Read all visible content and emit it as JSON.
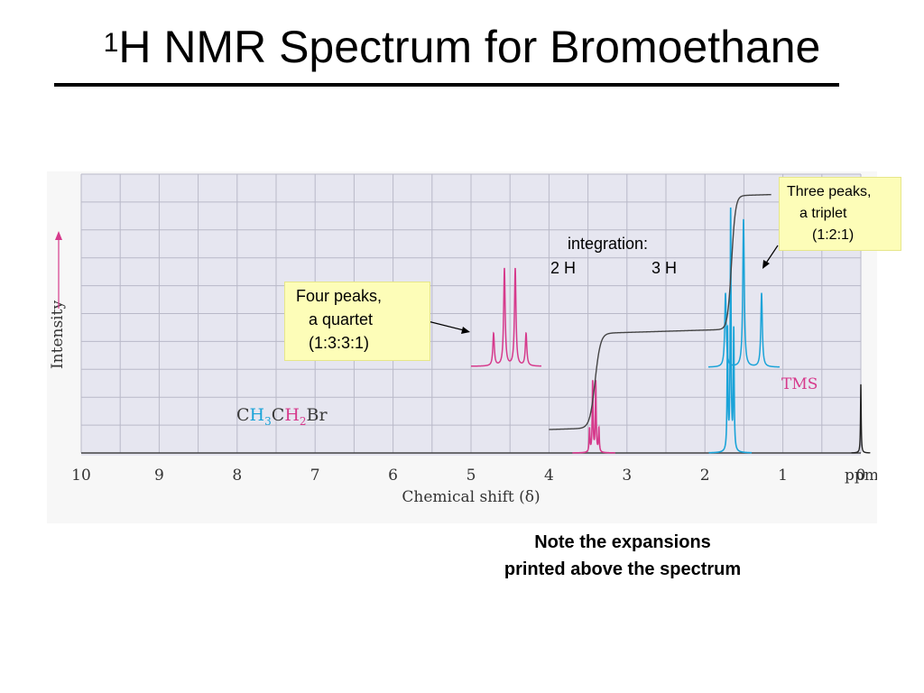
{
  "title": {
    "superscript": "1",
    "text": "H NMR Spectrum for Bromoethane"
  },
  "integration": {
    "label": "integration:",
    "left": "2 H",
    "right": "3 H"
  },
  "notes": {
    "quartet": [
      "Four peaks,",
      "a quartet",
      "(1:3:3:1)"
    ],
    "triplet": [
      "Three peaks,",
      "a triplet",
      "(1:2:1)"
    ]
  },
  "footnote": [
    "Note the expansions",
    "printed above the spectrum"
  ],
  "formula": {
    "parts": [
      {
        "text": "C",
        "color": "#3a3a3a",
        "sub": ""
      },
      {
        "text": "H",
        "color": "#1aa3d8",
        "sub": "3"
      },
      {
        "text": "C",
        "color": "#3a3a3a",
        "sub": ""
      },
      {
        "text": "H",
        "color": "#d63a8c",
        "sub": "2"
      },
      {
        "text": "Br",
        "color": "#3a3a3a",
        "sub": ""
      }
    ]
  },
  "colors": {
    "ch2": "#d63a8c",
    "ch3": "#1aa3d8",
    "tms": "#222222",
    "integral": "#444444",
    "grid": "#b9b9c8",
    "plot_bg": "#e6e6f0"
  },
  "chart_data": {
    "type": "line",
    "xlabel": "Chemical shift (δ)",
    "ylabel": "Intensity",
    "x_unit": "ppm",
    "xlim": [
      10,
      0
    ],
    "x_reversed": true,
    "x_ticks": [
      10,
      9,
      8,
      7,
      6,
      5,
      4,
      3,
      2,
      1,
      0
    ],
    "grid": true,
    "annotations": [
      {
        "label": "TMS",
        "x": 0.0
      }
    ],
    "series": [
      {
        "name": "",
        "group": "CH2",
        "multiplicity": "quartet",
        "x": [
          3.48,
          3.44,
          3.4,
          3.36
        ],
        "relative_heights": [
          1,
          3,
          3,
          1
        ]
      },
      {
        "name": "",
        "group": "CH3",
        "multiplicity": "triplet",
        "x": [
          1.71,
          1.67,
          1.63
        ],
        "relative_heights": [
          1,
          2,
          1
        ]
      },
      {
        "name": "",
        "group": "TMS",
        "multiplicity": "singlet",
        "x": [
          0.0
        ],
        "relative_heights": [
          1
        ]
      }
    ],
    "expansions": [
      {
        "group": "CH2",
        "pattern": [
          1,
          3,
          3,
          1
        ]
      },
      {
        "group": "CH3",
        "pattern": [
          1,
          2,
          1
        ]
      }
    ],
    "integration_steps": [
      {
        "group": "CH2",
        "x": 3.42,
        "protons": 2
      },
      {
        "group": "CH3",
        "x": 1.67,
        "protons": 3
      }
    ]
  }
}
